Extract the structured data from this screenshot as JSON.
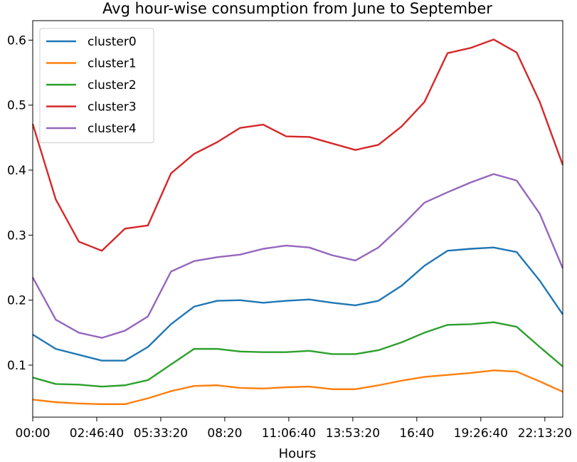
{
  "chart_data": {
    "type": "line",
    "title": "Avg hour-wise consumption from June to September",
    "xlabel": "Hours",
    "ylabel": "",
    "x": [
      "00:00",
      "01:00",
      "02:00",
      "03:00",
      "04:00",
      "05:00",
      "06:00",
      "07:00",
      "08:00",
      "09:00",
      "10:00",
      "11:00",
      "12:00",
      "13:00",
      "14:00",
      "15:00",
      "16:00",
      "17:00",
      "18:00",
      "19:00",
      "20:00",
      "21:00",
      "22:00",
      "23:00"
    ],
    "xticks": [
      "00:00",
      "02:46:40",
      "05:33:20",
      "08:20",
      "11:06:40",
      "13:53:20",
      "16:40",
      "19:26:40",
      "22:13:20"
    ],
    "xtick_hours": [
      0,
      2.7778,
      5.5556,
      8.3333,
      11.1111,
      13.8889,
      16.6667,
      19.4444,
      22.2222
    ],
    "xlim_hours": [
      0,
      23
    ],
    "yticks": [
      0.1,
      0.2,
      0.3,
      0.4,
      0.5,
      0.6
    ],
    "ylim": [
      0.02,
      0.63
    ],
    "grid": false,
    "legend_position": "upper-left",
    "series": [
      {
        "name": "cluster0",
        "color": "#1f77b4",
        "values": [
          0.147,
          0.125,
          0.116,
          0.107,
          0.107,
          0.128,
          0.163,
          0.19,
          0.199,
          0.2,
          0.196,
          0.199,
          0.201,
          0.196,
          0.192,
          0.199,
          0.222,
          0.253,
          0.276,
          0.279,
          0.281,
          0.274,
          0.23,
          0.178
        ]
      },
      {
        "name": "cluster1",
        "color": "#ff7f0e",
        "values": [
          0.047,
          0.043,
          0.041,
          0.04,
          0.04,
          0.049,
          0.06,
          0.068,
          0.069,
          0.065,
          0.064,
          0.066,
          0.067,
          0.063,
          0.063,
          0.069,
          0.076,
          0.082,
          0.085,
          0.088,
          0.092,
          0.09,
          0.075,
          0.059
        ]
      },
      {
        "name": "cluster2",
        "color": "#2ca02c",
        "values": [
          0.081,
          0.071,
          0.07,
          0.067,
          0.069,
          0.077,
          0.101,
          0.125,
          0.125,
          0.121,
          0.12,
          0.12,
          0.122,
          0.117,
          0.117,
          0.123,
          0.135,
          0.15,
          0.162,
          0.163,
          0.166,
          0.159,
          0.128,
          0.098
        ]
      },
      {
        "name": "cluster3",
        "color": "#d62728",
        "values": [
          0.471,
          0.355,
          0.29,
          0.276,
          0.31,
          0.315,
          0.395,
          0.425,
          0.443,
          0.465,
          0.47,
          0.452,
          0.451,
          0.441,
          0.431,
          0.439,
          0.467,
          0.505,
          0.58,
          0.588,
          0.601,
          0.581,
          0.505,
          0.408
        ]
      },
      {
        "name": "cluster4",
        "color": "#9467bd",
        "values": [
          0.235,
          0.17,
          0.15,
          0.142,
          0.153,
          0.175,
          0.244,
          0.26,
          0.266,
          0.27,
          0.279,
          0.284,
          0.281,
          0.269,
          0.261,
          0.281,
          0.314,
          0.35,
          0.366,
          0.381,
          0.394,
          0.384,
          0.333,
          0.249
        ]
      }
    ]
  }
}
